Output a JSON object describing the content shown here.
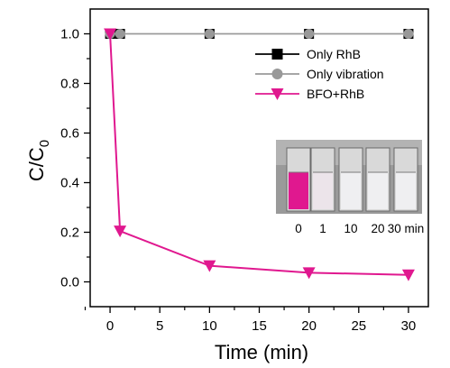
{
  "chart_data": {
    "type": "line",
    "xlabel": "Time (min)",
    "ylabel_main": "C/C",
    "ylabel_sub": "0",
    "xlim": [
      -2,
      32
    ],
    "ylim": [
      -0.1,
      1.1
    ],
    "xticks": [
      0,
      5,
      10,
      15,
      20,
      25,
      30
    ],
    "yticks": [
      0.0,
      0.2,
      0.4,
      0.6,
      0.8,
      1.0
    ],
    "series": [
      {
        "name": "Only RhB",
        "color": "#000000",
        "marker": "square",
        "x": [
          0,
          1,
          10,
          20,
          30
        ],
        "y": [
          1.0,
          1.0,
          1.0,
          1.0,
          1.0
        ]
      },
      {
        "name": "Only vibration",
        "color": "#999999",
        "marker": "circle",
        "x": [
          0,
          1,
          10,
          20,
          30
        ],
        "y": [
          1.0,
          1.0,
          1.0,
          1.0,
          1.0
        ]
      },
      {
        "name": "BFO+RhB",
        "color": "#e0188f",
        "marker": "triangle-down",
        "x": [
          0,
          1,
          10,
          20,
          30
        ],
        "y": [
          1.0,
          0.205,
          0.065,
          0.037,
          0.028
        ]
      }
    ],
    "legend_position": "top-right",
    "inset": {
      "labels": [
        "0",
        "1",
        "10",
        "20",
        "30 min"
      ]
    }
  }
}
